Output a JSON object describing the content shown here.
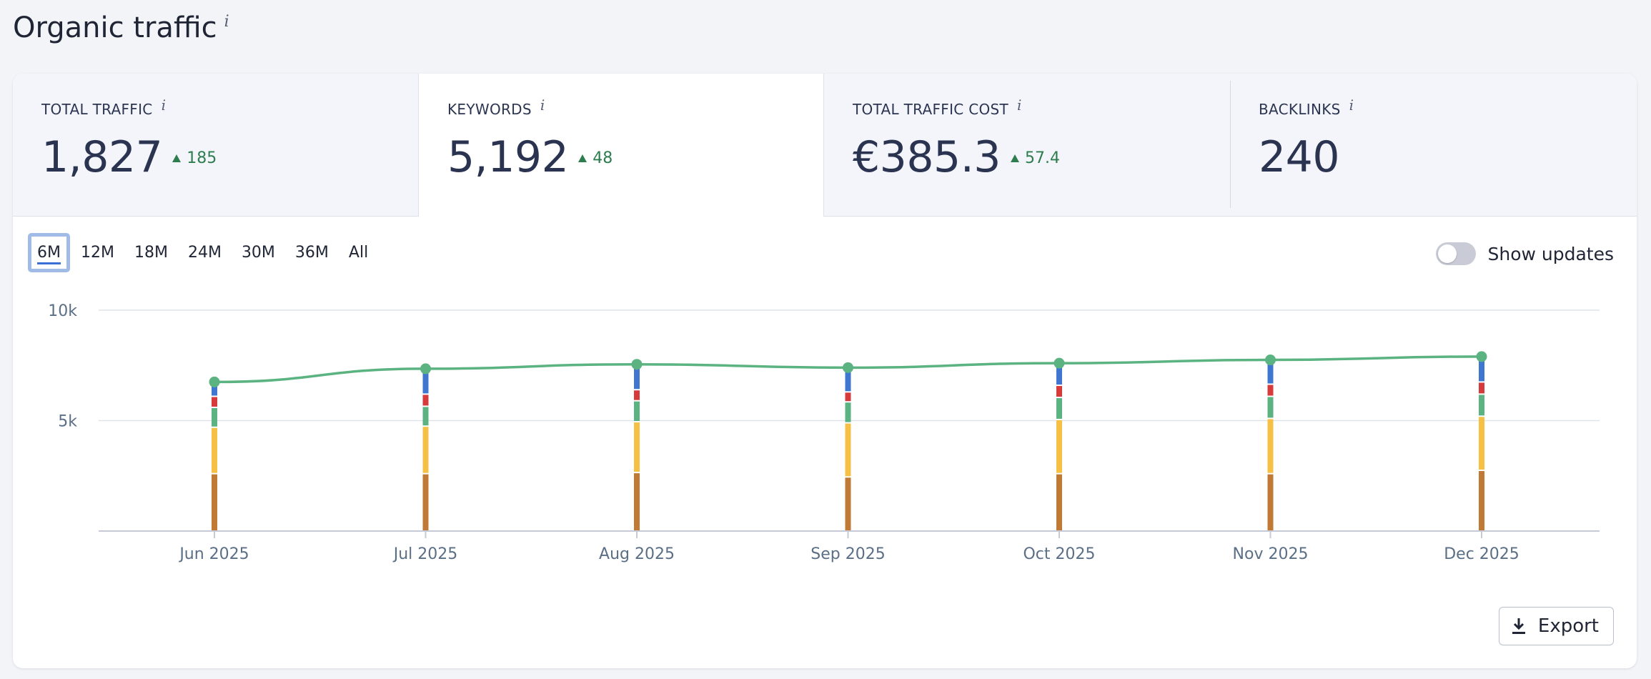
{
  "header": {
    "title": "Organic traffic",
    "info": "i"
  },
  "metrics": [
    {
      "label": "TOTAL TRAFFIC",
      "info": "i",
      "value": "1,827",
      "delta": "185"
    },
    {
      "label": "KEYWORDS",
      "info": "i",
      "value": "5,192",
      "delta": "48"
    },
    {
      "label": "TOTAL TRAFFIC COST",
      "info": "i",
      "value": "€385.3",
      "delta": "57.4"
    },
    {
      "label": "BACKLINKS",
      "info": "i",
      "value": "240"
    }
  ],
  "active_metric": "KEYWORDS",
  "ranges": [
    "6M",
    "12M",
    "18M",
    "24M",
    "30M",
    "36M",
    "All"
  ],
  "active_range": "6M",
  "toggle": {
    "label": "Show updates",
    "on": false
  },
  "export": {
    "label": "Export",
    "icon": "download-icon"
  },
  "colors": {
    "line": "#5bb381",
    "seg_brown": "#c17a35",
    "seg_yellow": "#f5c044",
    "seg_green": "#5bb381",
    "seg_red": "#d63a3a",
    "seg_blue": "#3f77d0",
    "grid": "#dfe3ea",
    "axis_text": "#5a6f86"
  },
  "chart_data": {
    "type": "line",
    "ylim": [
      0,
      10000
    ],
    "y_ticks": [
      {
        "value": 5000,
        "label": "5k"
      },
      {
        "value": 10000,
        "label": "10k"
      }
    ],
    "categories": [
      "Jun 2025",
      "Jul 2025",
      "Aug 2025",
      "Sep 2025",
      "Oct 2025",
      "Nov 2025",
      "Dec 2025"
    ],
    "line_values": [
      6750,
      7350,
      7550,
      7400,
      7600,
      7750,
      7900
    ],
    "stacked_segments": [
      [
        2600,
        2100,
        900,
        500,
        650
      ],
      [
        2600,
        2150,
        900,
        550,
        1150
      ],
      [
        2650,
        2300,
        950,
        500,
        1150
      ],
      [
        2450,
        2450,
        950,
        450,
        1100
      ],
      [
        2600,
        2450,
        1000,
        550,
        1000
      ],
      [
        2600,
        2500,
        1000,
        550,
        1100
      ],
      [
        2750,
        2450,
        1000,
        550,
        1150
      ]
    ],
    "segment_order": [
      "seg_brown",
      "seg_yellow",
      "seg_green",
      "seg_red",
      "seg_blue"
    ],
    "grid": true
  }
}
